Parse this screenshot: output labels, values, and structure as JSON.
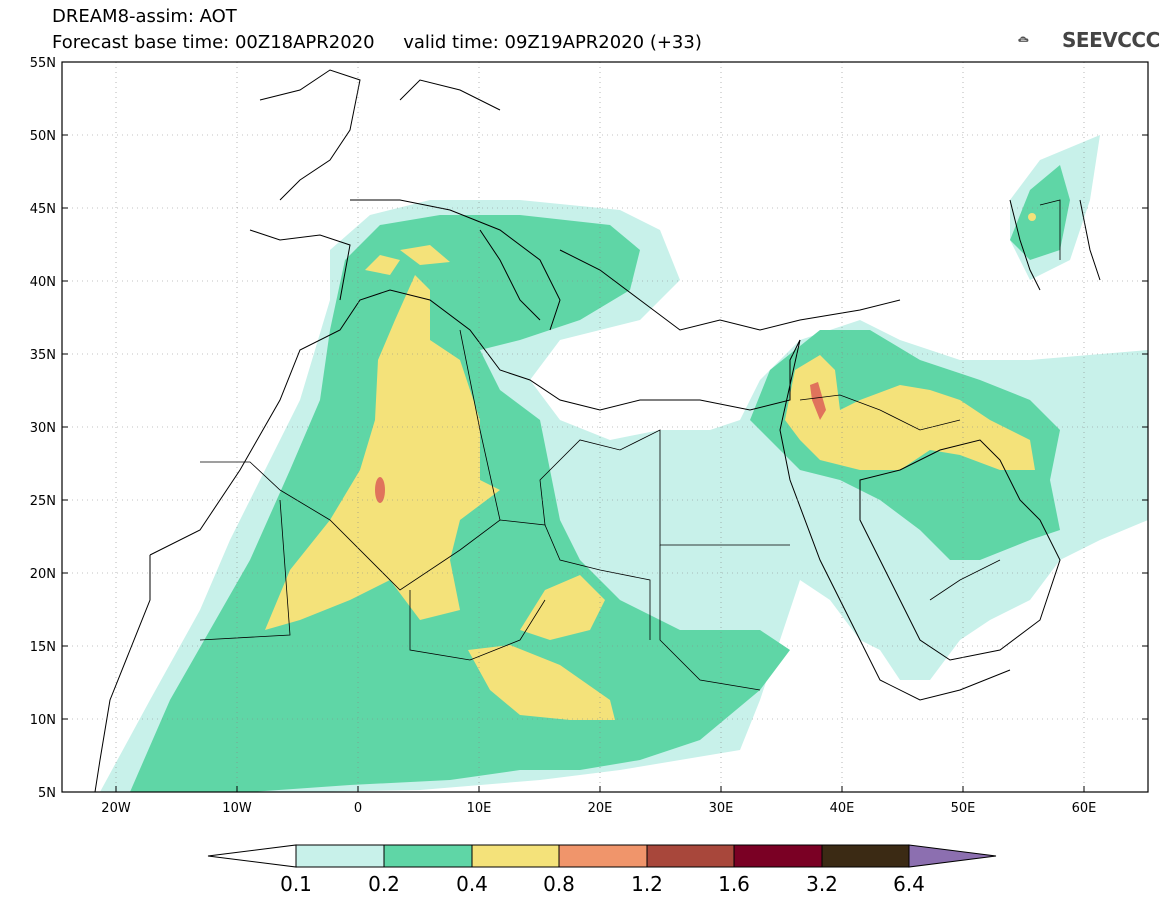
{
  "header": {
    "line1": "DREAM8-assim: AOT",
    "line2": "Forecast base time: 00Z18APR2020     valid time: 09Z19APR2020 (+33)"
  },
  "logo": {
    "text": "SEEVCCC",
    "icon": "cloud-icon"
  },
  "map": {
    "lon_range": [
      -25,
      65
    ],
    "lat_range": [
      5,
      55
    ],
    "y_ticks": [
      "55N",
      "50N",
      "45N",
      "40N",
      "35N",
      "30N",
      "25N",
      "20N",
      "15N",
      "10N",
      "5N"
    ],
    "x_ticks": [
      "20W",
      "10W",
      "0",
      "10E",
      "20E",
      "30E",
      "40E",
      "50E",
      "60E"
    ]
  },
  "colorbar": {
    "labels": [
      "0.1",
      "0.2",
      "0.4",
      "0.8",
      "1.2",
      "1.6",
      "3.2",
      "6.4"
    ],
    "colors": [
      "#ffffff",
      "#c8f1ea",
      "#5fd6a6",
      "#f4e27a",
      "#f0956b",
      "#a8473b",
      "#7a0024",
      "#3b2a14",
      "#8c6fb0"
    ]
  }
}
